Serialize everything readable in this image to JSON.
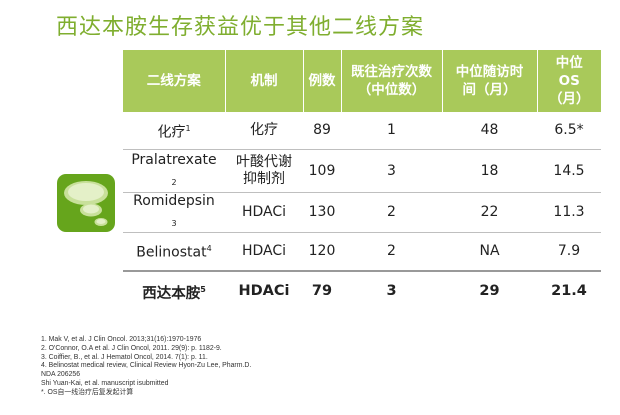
{
  "title": "西达本胺生存获益优于其他二线方案",
  "table": {
    "headers": [
      "二线方案",
      "机制",
      "例数",
      "既往治疗次数\n（中位数）",
      "中位随访时\n间（月）",
      "中位\nOS\n（月）"
    ],
    "rows": [
      {
        "regimen": "化疗",
        "ref": "1",
        "mechanism": "化疗",
        "n": "89",
        "prior": "1",
        "followup": "48",
        "os": "6.5*"
      },
      {
        "regimen": "Pralatrexate",
        "ref": "2",
        "mechanism": "叶酸代谢\n抑制剂",
        "n": "109",
        "prior": "3",
        "followup": "18",
        "os": "14.5"
      },
      {
        "regimen": "Romidepsin",
        "ref": "3",
        "mechanism": "HDACi",
        "n": "130",
        "prior": "2",
        "followup": "22",
        "os": "11.3"
      },
      {
        "regimen": "Belinostat",
        "ref": "4",
        "mechanism": "HDACi",
        "n": "120",
        "prior": "2",
        "followup": "NA",
        "os": "7.9"
      },
      {
        "regimen": "西达本胺",
        "ref": "5",
        "mechanism": "HDACi",
        "n": "79",
        "prior": "3",
        "followup": "29",
        "os": "21.4"
      }
    ]
  },
  "references": [
    "1. Mak V, et al. J Clin Oncol. 2013;31(16):1970-1976",
    "2. O'Connor, O.A et al. J Clin Oncol, 2011. 29(9): p. 1182-9.",
    "3. Coiffier, B., et al. J Hematol Oncol, 2014. 7(1): p. 11.",
    "4. Belinostat medical review, Clinical Review Hyon-Zu Lee, Pharm.D.",
    "NDA 206256",
    "Shi Yuan-Kai, et al. manuscript isubmitted",
    "*. OS自一线治疗后复发起计算"
  ],
  "colors": {
    "title": "#7fae2f",
    "header_bg": "#a9c95a",
    "logo_bg": "#66a51c",
    "highlight": "#c00000"
  },
  "logo_icon": "thought-bubble-icon"
}
